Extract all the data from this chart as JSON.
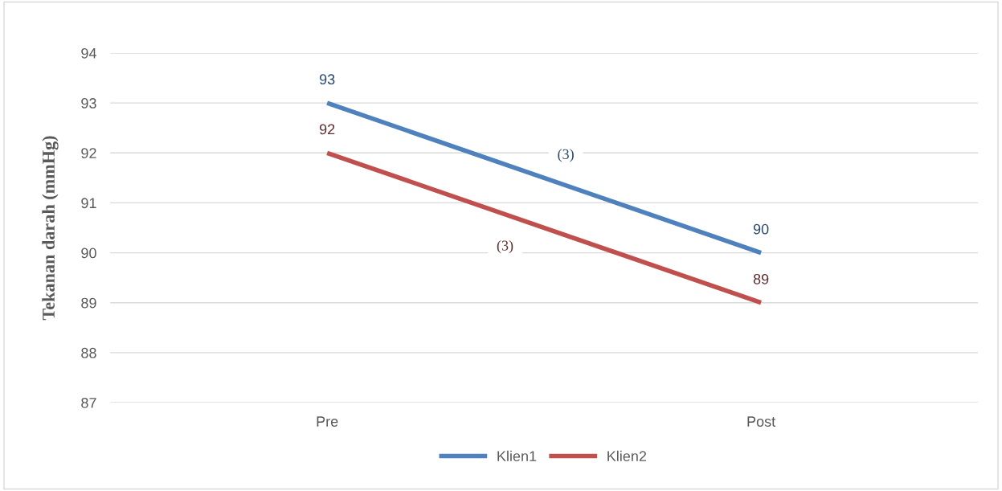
{
  "chart_data": {
    "type": "line",
    "ylabel": "Tekanan darah (mmHg)",
    "categories": [
      "Pre",
      "Post"
    ],
    "series": [
      {
        "name": "Klien1",
        "color": "#4f81bd",
        "values": [
          93,
          90
        ]
      },
      {
        "name": "Klien2",
        "color": "#c0504d",
        "values": [
          92,
          89
        ]
      }
    ],
    "ylim": [
      87,
      94
    ],
    "yticks": [
      87,
      88,
      89,
      90,
      91,
      92,
      93,
      94
    ],
    "annotations": [
      "(3)",
      "(3)"
    ],
    "data_labels": true,
    "grid": "y",
    "legend": "bottom",
    "marker": "none",
    "line_style": "solid"
  }
}
